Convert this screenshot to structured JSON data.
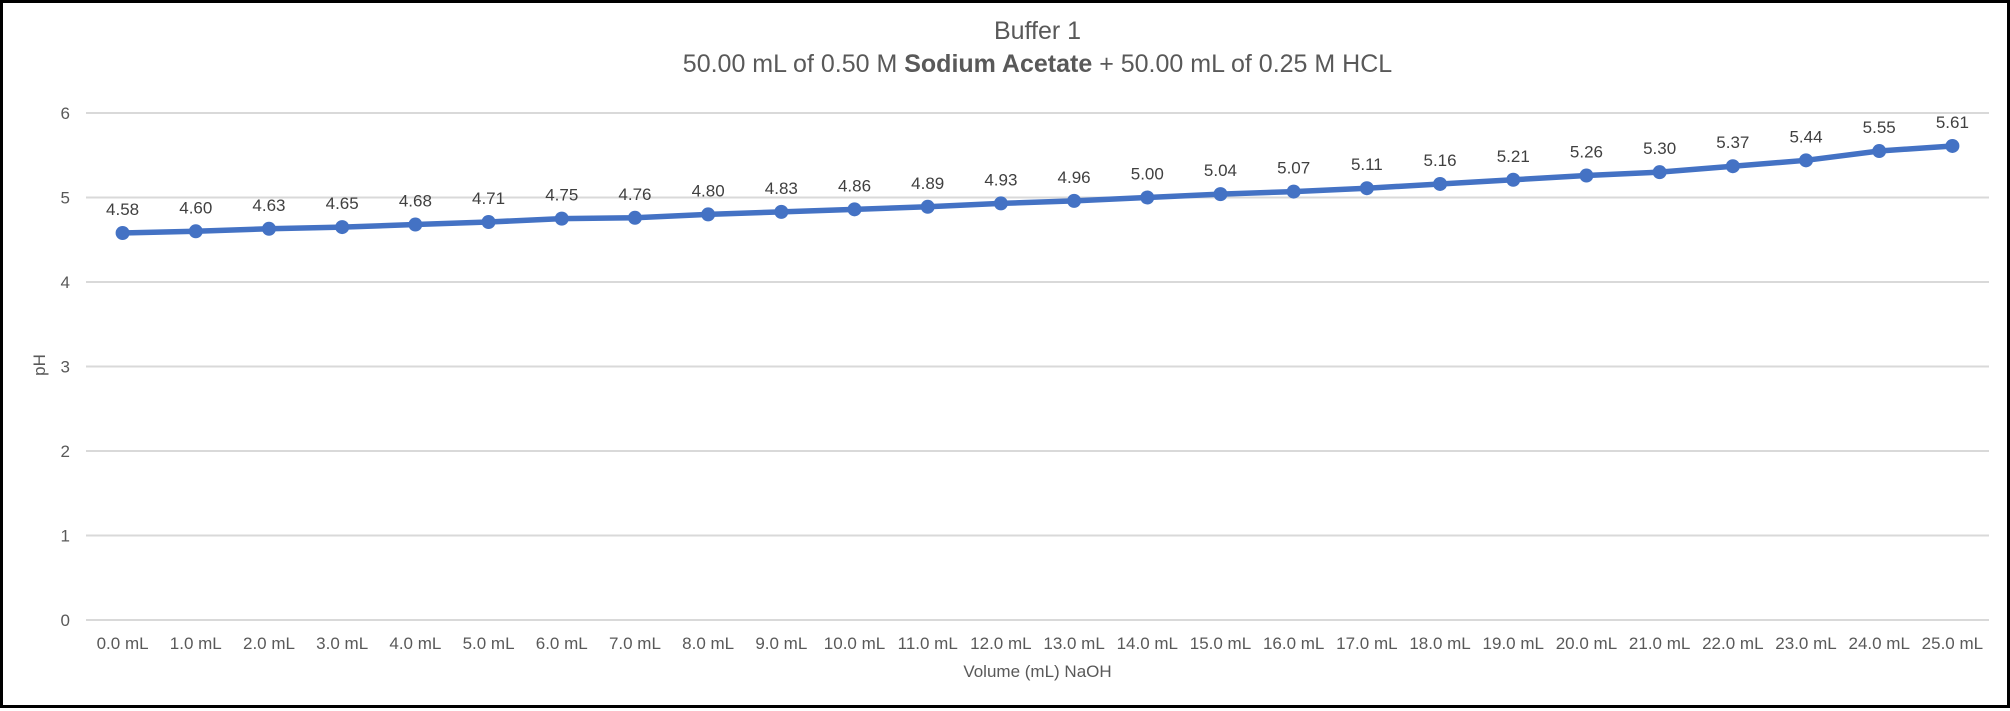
{
  "window": {
    "background_color": "#ffffff",
    "border_color": "#000000"
  },
  "chart": {
    "title": "Buffer 1",
    "subtitle_prefix": "50.00 mL of 0.50 M ",
    "subtitle_bold": "Sodium Acetate",
    "subtitle_suffix": " + 50.00 mL of 0.25 M HCL"
  },
  "chart_data": {
    "type": "line",
    "title": "Buffer 1",
    "subtitle": "50.00 mL of 0.50 M Sodium Acetate + 50.00 mL of 0.25 M HCL",
    "xlabel": "Volume (mL) NaOH",
    "ylabel": "pH",
    "categories": [
      "0.0 mL",
      "1.0 mL",
      "2.0 mL",
      "3.0 mL",
      "4.0 mL",
      "5.0 mL",
      "6.0 mL",
      "7.0 mL",
      "8.0 mL",
      "9.0 mL",
      "10.0 mL",
      "11.0 mL",
      "12.0 mL",
      "13.0 mL",
      "14.0 mL",
      "15.0 mL",
      "16.0 mL",
      "17.0 mL",
      "18.0 mL",
      "19.0 mL",
      "20.0 mL",
      "21.0 mL",
      "22.0 mL",
      "23.0 mL",
      "24.0 mL",
      "25.0 mL"
    ],
    "series": [
      {
        "name": "pH",
        "values": [
          4.58,
          4.6,
          4.63,
          4.65,
          4.68,
          4.71,
          4.75,
          4.76,
          4.8,
          4.83,
          4.86,
          4.89,
          4.93,
          4.96,
          5.0,
          5.04,
          5.07,
          5.11,
          5.16,
          5.21,
          5.26,
          5.3,
          5.37,
          5.44,
          5.55,
          5.61
        ],
        "point_labels": [
          "4.58",
          "4.60",
          "4.63",
          "4.65",
          "4.68",
          "4.71",
          "4.75",
          "4.76",
          "4.80",
          "4.83",
          "4.86",
          "4.89",
          "4.93",
          "4.96",
          "5.00",
          "5.04",
          "5.07",
          "5.11",
          "5.16",
          "5.21",
          "5.26",
          "5.30",
          "5.37",
          "5.44",
          "5.55",
          "5.61"
        ]
      }
    ],
    "ylim": [
      0,
      6
    ],
    "yticks": [
      0,
      1,
      2,
      3,
      4,
      5,
      6
    ],
    "grid": "horizontal",
    "legend": "none",
    "colors": {
      "line": "#4472C4",
      "marker": "#4472C4",
      "gridline": "#D9D9D9",
      "tick_text": "#595959",
      "data_label_text": "#404040",
      "title_text": "#595959"
    }
  }
}
